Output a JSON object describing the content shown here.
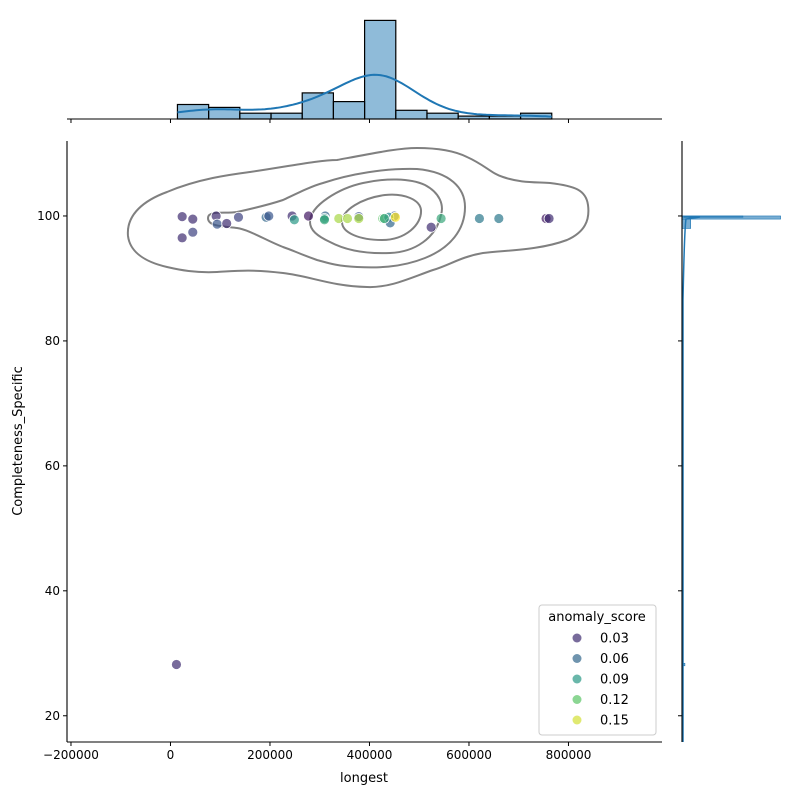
{
  "chart_data": {
    "type": "scatter",
    "kind": "jointplot",
    "xlabel": "longest",
    "ylabel": "Completeness_Specific",
    "xlim": [
      -208000,
      988000
    ],
    "ylim": [
      15.8,
      112
    ],
    "x_ticks": [
      -200000,
      0,
      200000,
      400000,
      600000,
      800000
    ],
    "x_tick_labels": [
      "−200000",
      "0",
      "200000",
      "400000",
      "600000",
      "800000"
    ],
    "y_ticks": [
      20,
      40,
      60,
      80,
      100
    ],
    "y_tick_labels": [
      "20",
      "40",
      "60",
      "80",
      "100"
    ],
    "grid": false,
    "hue": "anomaly_score",
    "colormap": "viridis",
    "point_alpha": 0.7,
    "legend": {
      "title": "anomaly_score",
      "placement": "lower-right",
      "entries": [
        {
          "label": "0.03",
          "value": 0.03
        },
        {
          "label": "0.06",
          "value": 0.06
        },
        {
          "label": "0.09",
          "value": 0.09
        },
        {
          "label": "0.12",
          "value": 0.12
        },
        {
          "label": "0.15",
          "value": 0.15
        }
      ]
    },
    "points": [
      {
        "x": 23500,
        "y": 99.9,
        "score": 0.03
      },
      {
        "x": 44800,
        "y": 99.5,
        "score": 0.03
      },
      {
        "x": 23500,
        "y": 96.5,
        "score": 0.03
      },
      {
        "x": 44800,
        "y": 97.4,
        "score": 0.04
      },
      {
        "x": 91800,
        "y": 100.0,
        "score": 0.03
      },
      {
        "x": 93800,
        "y": 98.7,
        "score": 0.05
      },
      {
        "x": 113000,
        "y": 98.8,
        "score": 0.03
      },
      {
        "x": 136700,
        "y": 99.8,
        "score": 0.04
      },
      {
        "x": 192300,
        "y": 99.8,
        "score": 0.06
      },
      {
        "x": 197600,
        "y": 100.0,
        "score": 0.05
      },
      {
        "x": 244500,
        "y": 100.0,
        "score": 0.03
      },
      {
        "x": 249000,
        "y": 99.4,
        "score": 0.09
      },
      {
        "x": 277400,
        "y": 100.0,
        "score": 0.02
      },
      {
        "x": 311000,
        "y": 100.0,
        "score": 0.06
      },
      {
        "x": 309500,
        "y": 99.6,
        "score": 0.09
      },
      {
        "x": 309500,
        "y": 99.4,
        "score": 0.1
      },
      {
        "x": 338300,
        "y": 99.6,
        "score": 0.14
      },
      {
        "x": 355800,
        "y": 99.6,
        "score": 0.14
      },
      {
        "x": 378500,
        "y": 99.9,
        "score": 0.05
      },
      {
        "x": 378500,
        "y": 99.6,
        "score": 0.14
      },
      {
        "x": 426700,
        "y": 99.6,
        "score": 0.12
      },
      {
        "x": 450000,
        "y": 100.0,
        "score": 0.05
      },
      {
        "x": 438800,
        "y": 99.8,
        "score": 0.08
      },
      {
        "x": 441600,
        "y": 98.9,
        "score": 0.06
      },
      {
        "x": 452200,
        "y": 99.8,
        "score": 0.16
      },
      {
        "x": 430000,
        "y": 99.6,
        "score": 0.1
      },
      {
        "x": 524000,
        "y": 98.2,
        "score": 0.03
      },
      {
        "x": 544000,
        "y": 99.6,
        "score": 0.1
      },
      {
        "x": 621000,
        "y": 99.6,
        "score": 0.07
      },
      {
        "x": 660000,
        "y": 99.6,
        "score": 0.07
      },
      {
        "x": 755000,
        "y": 99.6,
        "score": 0.02
      },
      {
        "x": 761000,
        "y": 99.6,
        "score": 0.03
      },
      {
        "x": 12000,
        "y": 28.2,
        "score": 0.03
      }
    ],
    "marginal_x": {
      "type": "histogram+kde",
      "color": "#1f77b4",
      "bin_start": 14000,
      "bin_width": 62700,
      "counts": [
        5,
        4,
        2,
        2,
        9,
        6,
        34,
        3,
        2,
        1,
        1,
        2
      ]
    },
    "marginal_y": {
      "type": "histogram+kde",
      "color": "#1f77b4",
      "bins": [
        {
          "y0": 99.5,
          "y1": 100.0,
          "count": 34
        },
        {
          "y0": 99.8,
          "y1": 100.0,
          "count": 21
        },
        {
          "y0": 98.0,
          "y1": 99.5,
          "count": 3
        },
        {
          "y0": 28.0,
          "y1": 28.4,
          "count": 1
        }
      ]
    },
    "joint_kde_contours": {
      "color": "#808080",
      "levels_shown": 4
    }
  }
}
